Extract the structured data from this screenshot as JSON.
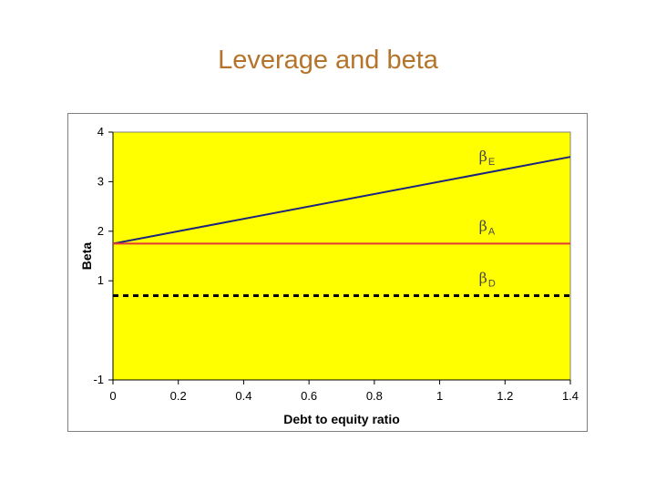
{
  "slide": {
    "title": "Leverage and beta"
  },
  "chart_data": {
    "type": "line",
    "title": "",
    "xlabel": "Debt to equity ratio",
    "ylabel": "Beta",
    "xlim": [
      0,
      1.4
    ],
    "ylim": [
      -1,
      4
    ],
    "x_ticks": [
      0,
      0.2,
      0.4,
      0.6,
      0.8,
      1,
      1.2,
      1.4
    ],
    "x_tick_labels": [
      "0",
      "0.2",
      "0.4",
      "0.6",
      "0.8",
      "1",
      "1.2",
      "1.4"
    ],
    "y_ticks": [
      -1,
      1,
      2,
      3,
      4
    ],
    "y_tick_labels": [
      "-1",
      "1",
      "2",
      "3",
      "4"
    ],
    "plot_background": "#ffff00",
    "grid": false,
    "series": [
      {
        "label_main": "β",
        "label_sub": "E",
        "color": "#1a237e",
        "style": "solid",
        "x": [
          0,
          1.4
        ],
        "y": [
          1.75,
          3.5
        ]
      },
      {
        "label_main": "β",
        "label_sub": "A",
        "color": "#e53935",
        "style": "solid",
        "x": [
          0,
          1.4
        ],
        "y": [
          1.75,
          1.75
        ]
      },
      {
        "label_main": "β",
        "label_sub": "D",
        "color": "#000000",
        "style": "dashed",
        "x": [
          0,
          1.4
        ],
        "y": [
          0.7,
          0.7
        ]
      }
    ]
  }
}
